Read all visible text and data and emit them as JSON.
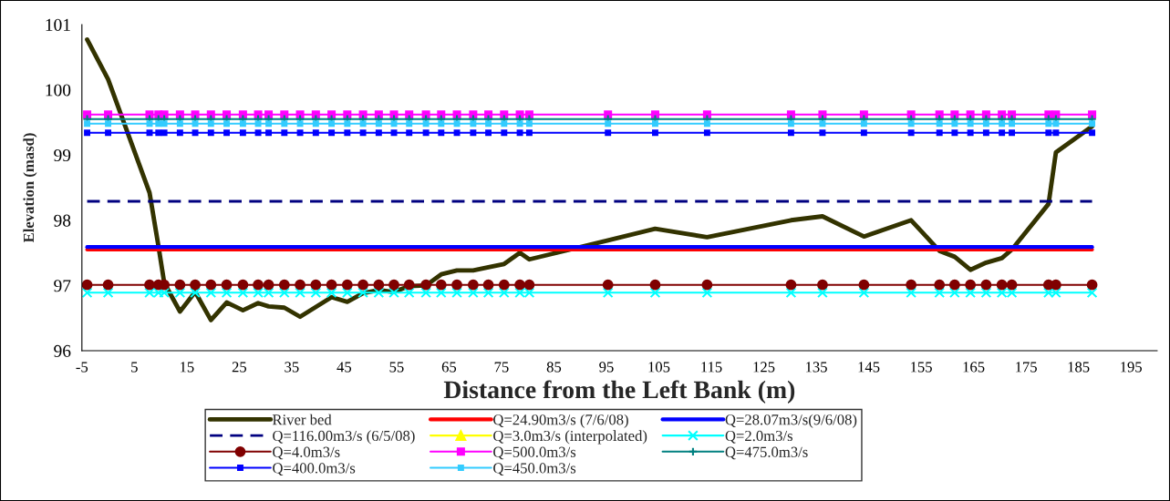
{
  "chart_data": {
    "type": "line",
    "xlabel": "Distance from the Left Bank (m)",
    "ylabel": "Elevation (masd)",
    "x": [
      -4,
      0,
      7.9,
      9.6,
      10.7,
      13.7,
      16.6,
      19.6,
      22.6,
      25.7,
      28.6,
      30.6,
      33.6,
      36.6,
      39.6,
      42.6,
      45.6,
      48.6,
      51.6,
      54.5,
      57.4,
      60.6,
      63.5,
      66.5,
      69.6,
      72.5,
      75.5,
      78.5,
      80.3,
      95.3,
      104.3,
      114.2,
      130.2,
      136.2,
      144.1,
      153.1,
      158.5,
      161.4,
      164.4,
      167.4,
      170.4,
      172.3,
      179.3,
      180.7,
      187.6
    ],
    "xlim": [
      -5,
      200
    ],
    "xticks": [
      -5,
      5,
      15,
      25,
      35,
      45,
      55,
      65,
      75,
      85,
      95,
      105,
      115,
      125,
      135,
      145,
      155,
      165,
      175,
      185,
      195
    ],
    "ylim": [
      96,
      101
    ],
    "yticks": [
      96,
      97,
      98,
      99,
      100,
      101
    ],
    "grid": false,
    "legend": "bottom",
    "series": [
      {
        "name": "River bed",
        "color": "#333300",
        "line_style": "solid",
        "marker": "none",
        "values": [
          100.77,
          100.16,
          98.42,
          97.6,
          97.04,
          96.6,
          96.9,
          96.47,
          96.74,
          96.62,
          96.73,
          96.68,
          96.66,
          96.52,
          96.67,
          96.82,
          96.75,
          96.88,
          96.93,
          96.9,
          96.99,
          97.0,
          97.17,
          97.23,
          97.23,
          97.28,
          97.33,
          97.5,
          97.4,
          97.69,
          97.87,
          97.74,
          98.0,
          98.06,
          97.75,
          98.0,
          97.53,
          97.44,
          97.24,
          97.35,
          97.42,
          97.55,
          98.25,
          99.04,
          99.44
        ]
      },
      {
        "name": "Q=24.90m3/s (7/6/08)",
        "color": "#ff0000",
        "line_style": "solid",
        "marker": "none",
        "values": [
          97.55,
          97.55,
          97.55,
          97.55,
          97.55,
          97.55,
          97.55,
          97.55,
          97.55,
          97.55,
          97.55,
          97.55,
          97.55,
          97.55,
          97.55,
          97.55,
          97.55,
          97.55,
          97.55,
          97.55,
          97.55,
          97.55,
          97.55,
          97.55,
          97.55,
          97.55,
          97.55,
          97.55,
          97.55,
          97.55,
          97.55,
          97.55,
          97.55,
          97.55,
          97.55,
          97.55,
          97.55,
          97.55,
          97.55,
          97.55,
          97.55,
          97.55,
          97.55,
          97.55,
          97.55
        ]
      },
      {
        "name": "Q=28.07m3/s(9/6/08)",
        "color": "#0000ff",
        "line_style": "solid",
        "marker": "none",
        "values": [
          97.59,
          97.59,
          97.59,
          97.59,
          97.59,
          97.59,
          97.59,
          97.59,
          97.59,
          97.59,
          97.59,
          97.59,
          97.59,
          97.59,
          97.59,
          97.59,
          97.59,
          97.59,
          97.59,
          97.59,
          97.59,
          97.59,
          97.59,
          97.59,
          97.59,
          97.59,
          97.59,
          97.59,
          97.59,
          97.59,
          97.59,
          97.59,
          97.59,
          97.59,
          97.59,
          97.59,
          97.59,
          97.59,
          97.59,
          97.59,
          97.59,
          97.59,
          97.59,
          97.59,
          97.59
        ]
      },
      {
        "name": "Q=116.00m3/s (6/5/08)",
        "color": "#000080",
        "line_style": "dashed",
        "marker": "none",
        "values": [
          98.29,
          98.29,
          98.29,
          98.29,
          98.29,
          98.29,
          98.29,
          98.29,
          98.29,
          98.29,
          98.29,
          98.29,
          98.29,
          98.29,
          98.29,
          98.29,
          98.29,
          98.29,
          98.29,
          98.29,
          98.29,
          98.29,
          98.29,
          98.29,
          98.29,
          98.29,
          98.29,
          98.29,
          98.29,
          98.29,
          98.29,
          98.29,
          98.29,
          98.29,
          98.29,
          98.29,
          98.29,
          98.29,
          98.29,
          98.29,
          98.29,
          98.29,
          98.29,
          98.29,
          98.29
        ]
      },
      {
        "name": "Q=3.0m3/s (interpolated)",
        "color": "#ffff00",
        "line_style": "solid",
        "marker": "triangle",
        "values": [
          null,
          null,
          null,
          null,
          null,
          null,
          null,
          null,
          null,
          null,
          null,
          null,
          null,
          null,
          null,
          null,
          null,
          null,
          null,
          null,
          null,
          null,
          null,
          null,
          null,
          null,
          null,
          null,
          null,
          null,
          null,
          null,
          null,
          null,
          null,
          null,
          null,
          null,
          null,
          null,
          null,
          null,
          null,
          null,
          null
        ]
      },
      {
        "name": "Q=2.0m3/s",
        "color": "#00ffff",
        "line_style": "solid",
        "marker": "cross",
        "values": [
          96.89,
          96.89,
          96.89,
          96.89,
          96.89,
          96.89,
          96.89,
          96.89,
          96.89,
          96.89,
          96.89,
          96.89,
          96.89,
          96.89,
          96.89,
          96.89,
          96.89,
          96.89,
          96.89,
          96.89,
          96.89,
          96.89,
          96.89,
          96.89,
          96.89,
          96.89,
          96.89,
          96.89,
          96.89,
          96.89,
          96.89,
          96.89,
          96.89,
          96.89,
          96.89,
          96.89,
          96.89,
          96.89,
          96.89,
          96.89,
          96.89,
          96.89,
          96.89,
          96.89,
          96.89
        ]
      },
      {
        "name": "Q=4.0m3/s",
        "color": "#800000",
        "line_style": "solid",
        "marker": "circle",
        "values": [
          97.01,
          97.01,
          97.01,
          97.01,
          97.01,
          97.01,
          97.01,
          97.01,
          97.01,
          97.01,
          97.01,
          97.01,
          97.01,
          97.01,
          97.01,
          97.01,
          97.01,
          97.01,
          97.01,
          97.01,
          97.01,
          97.01,
          97.01,
          97.01,
          97.01,
          97.01,
          97.01,
          97.01,
          97.01,
          97.01,
          97.01,
          97.01,
          97.01,
          97.01,
          97.01,
          97.01,
          97.01,
          97.01,
          97.01,
          97.01,
          97.01,
          97.01,
          97.01,
          97.01,
          97.01
        ]
      },
      {
        "name": "Q=500.0m3/s",
        "color": "#ff00ff",
        "line_style": "solid",
        "marker": "square",
        "values": [
          99.62,
          99.62,
          99.62,
          99.62,
          99.62,
          99.62,
          99.62,
          99.62,
          99.62,
          99.62,
          99.62,
          99.62,
          99.62,
          99.62,
          99.62,
          99.62,
          99.62,
          99.62,
          99.62,
          99.62,
          99.62,
          99.62,
          99.62,
          99.62,
          99.62,
          99.62,
          99.62,
          99.62,
          99.62,
          99.62,
          99.62,
          99.62,
          99.62,
          99.62,
          99.62,
          99.62,
          99.62,
          99.62,
          99.62,
          99.62,
          99.62,
          99.62,
          99.62,
          99.62,
          99.62
        ]
      },
      {
        "name": "Q=475.0m3/s",
        "color": "#008080",
        "line_style": "solid",
        "marker": "plus",
        "values": [
          99.55,
          99.55,
          99.55,
          99.55,
          99.55,
          99.55,
          99.55,
          99.55,
          99.55,
          99.55,
          99.55,
          99.55,
          99.55,
          99.55,
          99.55,
          99.55,
          99.55,
          99.55,
          99.55,
          99.55,
          99.55,
          99.55,
          99.55,
          99.55,
          99.55,
          99.55,
          99.55,
          99.55,
          99.55,
          99.55,
          99.55,
          99.55,
          99.55,
          99.55,
          99.55,
          99.55,
          99.55,
          99.55,
          99.55,
          99.55,
          99.55,
          99.55,
          99.55,
          99.55,
          99.55
        ]
      },
      {
        "name": "Q=400.0m3/s",
        "color": "#0000ff",
        "line_style": "solid",
        "marker": "square",
        "values": [
          99.34,
          99.34,
          99.34,
          99.34,
          99.34,
          99.34,
          99.34,
          99.34,
          99.34,
          99.34,
          99.34,
          99.34,
          99.34,
          99.34,
          99.34,
          99.34,
          99.34,
          99.34,
          99.34,
          99.34,
          99.34,
          99.34,
          99.34,
          99.34,
          99.34,
          99.34,
          99.34,
          99.34,
          99.34,
          99.34,
          99.34,
          99.34,
          99.34,
          99.34,
          99.34,
          99.34,
          99.34,
          99.34,
          99.34,
          99.34,
          99.34,
          99.34,
          99.34,
          99.34,
          99.34
        ]
      },
      {
        "name": "Q=450.0m3/s",
        "color": "#33ccff",
        "line_style": "solid",
        "marker": "square",
        "values": [
          99.48,
          99.48,
          99.48,
          99.48,
          99.48,
          99.48,
          99.48,
          99.48,
          99.48,
          99.48,
          99.48,
          99.48,
          99.48,
          99.48,
          99.48,
          99.48,
          99.48,
          99.48,
          99.48,
          99.48,
          99.48,
          99.48,
          99.48,
          99.48,
          99.48,
          99.48,
          99.48,
          99.48,
          99.48,
          99.48,
          99.48,
          99.48,
          99.48,
          99.48,
          99.48,
          99.48,
          99.48,
          99.48,
          99.48,
          99.48,
          99.48,
          99.48,
          99.48,
          99.48,
          99.48
        ]
      }
    ]
  }
}
